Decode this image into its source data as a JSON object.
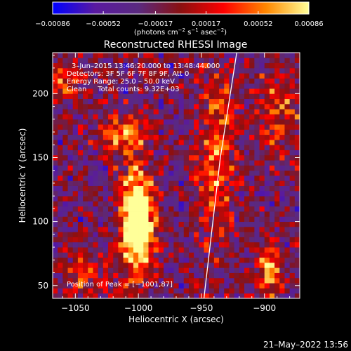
{
  "chart_data": {
    "type": "heatmap",
    "title": "Reconstructed RHESSI Image",
    "xlabel": "Heliocentric X (arcsec)",
    "ylabel": "Heliocentric Y (arcsec)",
    "xlim": [
      -1068,
      -872
    ],
    "ylim": [
      40,
      232
    ],
    "x_ticks": [
      -1050,
      -1000,
      -950,
      -900
    ],
    "x_tick_labels": [
      "−1050",
      "−1000",
      "−950",
      "−900"
    ],
    "y_ticks": [
      50,
      100,
      150,
      200
    ],
    "y_tick_labels": [
      "50",
      "100",
      "150",
      "200"
    ],
    "colorbar": {
      "range": [
        -0.00086,
        0.00086
      ],
      "ticks": [
        -0.00086,
        -0.00052,
        -0.00017,
        0.00017,
        0.00052,
        0.00086
      ],
      "tick_labels": [
        "−0.00086",
        "−0.00052",
        "−0.00017",
        "0.00017",
        "0.00052",
        "0.00086"
      ],
      "units_text": "photons cm",
      "units_sup1": "−2",
      "units_mid": " s",
      "units_sup2": "−1",
      "units_end": " asec",
      "units_sup3": "−2",
      "colors": [
        "#0000ff",
        "#5a1aa0",
        "#5a2a80",
        "#8a1010",
        "#ff0000",
        "#ff8800",
        "#ffff99"
      ]
    },
    "annotations": {
      "time": "3–Jun–2015 13:46:20.000 to 13:48:44.000",
      "detectors": "Detectors: 3F 5F 6F 7F 8F 9F, Att 0",
      "energy": "Energy Range: 25.0 – 50.0 keV",
      "clean": "Clean     Total counts: 9.32E+03",
      "peak": "Position of Peak = [−1001,87]"
    },
    "peak": {
      "x": -1001,
      "y": 87
    },
    "limb_line": [
      [
        -948,
        40
      ],
      [
        -935,
        150
      ],
      [
        -922,
        232
      ]
    ],
    "sources": [
      {
        "x": -1001,
        "y": 100,
        "sx": 9,
        "sy": 28,
        "amp": 1.0
      },
      {
        "x": -1010,
        "y": 168,
        "sx": 12,
        "sy": 10,
        "amp": 0.45
      },
      {
        "x": -938,
        "y": 150,
        "sx": 10,
        "sy": 45,
        "amp": 0.4
      },
      {
        "x": -897,
        "y": 62,
        "sx": 6,
        "sy": 14,
        "amp": 0.55
      },
      {
        "x": -888,
        "y": 185,
        "sx": 14,
        "sy": 22,
        "amp": 0.3
      },
      {
        "x": -1060,
        "y": 210,
        "sx": 12,
        "sy": 12,
        "amp": 0.3
      },
      {
        "x": -1040,
        "y": 60,
        "sx": 14,
        "sy": 12,
        "amp": 0.25
      }
    ]
  },
  "footer": {
    "date": "21–May–2022 13:56"
  }
}
